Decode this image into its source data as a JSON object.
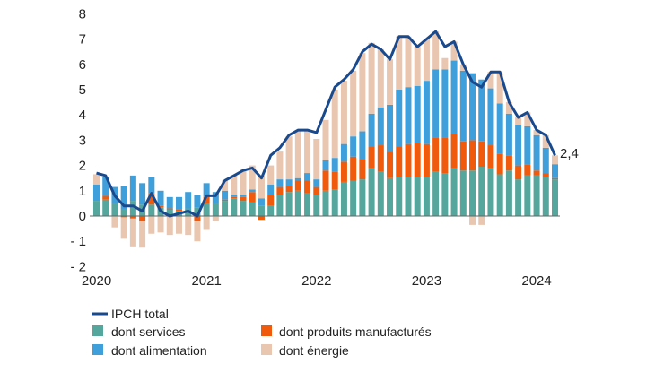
{
  "chart_data": {
    "type": "bar",
    "stacked": true,
    "categories_start": "2020-01",
    "categories_end": "2024-03",
    "frequency": "monthly",
    "x_tick_labels": [
      "2020",
      "2021",
      "2022",
      "2023",
      "2024"
    ],
    "y_tick_labels": [
      "- 2",
      "- 1",
      "0",
      "1",
      "2",
      "3",
      "4",
      "5",
      "6",
      "7",
      "8"
    ],
    "ylim": [
      -2,
      8
    ],
    "grid": false,
    "legend_position": "bottom",
    "end_label": "2,4",
    "colors": {
      "line": "#1a4a8e",
      "services": "#55a69c",
      "manuf": "#ef5a0c",
      "food": "#3f9fda",
      "energy": "#e9c6b0"
    },
    "line": {
      "name": "IPCH total",
      "values": [
        1.7,
        1.6,
        0.8,
        0.4,
        0.4,
        0.2,
        0.9,
        0.2,
        0.0,
        0.1,
        0.2,
        0.0,
        0.8,
        0.8,
        1.4,
        1.6,
        1.8,
        1.9,
        1.5,
        2.4,
        2.7,
        3.2,
        3.4,
        3.4,
        3.3,
        4.2,
        5.1,
        5.4,
        5.8,
        6.5,
        6.8,
        6.6,
        6.2,
        7.1,
        7.1,
        6.7,
        7.0,
        7.3,
        6.7,
        6.9,
        6.0,
        5.3,
        5.1,
        5.7,
        5.7,
        4.5,
        3.9,
        4.1,
        3.4,
        3.2,
        2.4
      ]
    },
    "series": [
      {
        "key": "services",
        "name": "dont services",
        "values": [
          0.6,
          0.65,
          0.5,
          0.25,
          0.6,
          0.45,
          0.45,
          0.35,
          0.25,
          0.2,
          0.3,
          0.35,
          0.5,
          0.5,
          0.6,
          0.7,
          0.6,
          0.55,
          0.4,
          0.4,
          0.85,
          0.95,
          1.0,
          0.9,
          0.85,
          1.0,
          1.05,
          1.35,
          1.4,
          1.45,
          1.9,
          1.75,
          1.5,
          1.55,
          1.55,
          1.55,
          1.55,
          1.75,
          1.7,
          1.9,
          1.8,
          1.8,
          1.95,
          1.9,
          1.65,
          1.8,
          1.45,
          1.6,
          1.6,
          1.55,
          1.45
        ]
      },
      {
        "key": "manuf",
        "name": "dont produits manufacturés",
        "values": [
          0,
          0.15,
          0,
          -0.05,
          -0.1,
          -0.2,
          0.45,
          0.05,
          0.05,
          0.05,
          0,
          -0.2,
          0.25,
          0,
          0.05,
          0.05,
          0.15,
          0.4,
          -0.15,
          0.45,
          0.3,
          0.25,
          0.4,
          0.5,
          0.3,
          0.8,
          0.7,
          0.8,
          0.95,
          0.8,
          0.85,
          1.05,
          1.05,
          1.2,
          1.3,
          1.35,
          1.3,
          1.35,
          1.4,
          1.35,
          1.15,
          1.2,
          1.0,
          0.9,
          0.8,
          0.6,
          0.55,
          0.45,
          0.2,
          0.15,
          0.05
        ]
      },
      {
        "key": "food",
        "name": "dont alimentation",
        "values": [
          0.65,
          0.75,
          0.65,
          0.95,
          1.0,
          0.85,
          0.65,
          0.6,
          0.45,
          0.5,
          0.65,
          0.5,
          0.55,
          0.45,
          0.35,
          0.1,
          0.1,
          0.1,
          0.3,
          0.4,
          0.3,
          0.25,
          0.1,
          0.3,
          0.3,
          0.4,
          0.55,
          0.7,
          0.8,
          1.1,
          1.3,
          1.5,
          1.85,
          2.25,
          2.25,
          2.25,
          2.5,
          2.7,
          2.7,
          2.9,
          2.8,
          2.65,
          2.45,
          2.25,
          2.0,
          1.65,
          1.6,
          1.5,
          1.4,
          1.0,
          0.55
        ]
      },
      {
        "key": "energy",
        "name": "dont énergie",
        "values": [
          0.4,
          0,
          -0.45,
          -0.85,
          -1.1,
          -1.05,
          -0.7,
          -0.65,
          -0.75,
          -0.7,
          -0.75,
          -0.8,
          -0.55,
          -0.2,
          0.4,
          0.75,
          1.0,
          0.95,
          0.9,
          0.75,
          1.1,
          1.7,
          1.9,
          1.7,
          1.6,
          1.6,
          2.7,
          2.5,
          2.6,
          3.1,
          2.8,
          2.3,
          1.8,
          2.1,
          2.0,
          1.55,
          1.65,
          1.5,
          0.45,
          0.75,
          0.25,
          -0.35,
          -0.35,
          0.65,
          1.2,
          0.45,
          0.3,
          0.55,
          0.2,
          0.5,
          0.35
        ]
      }
    ]
  }
}
